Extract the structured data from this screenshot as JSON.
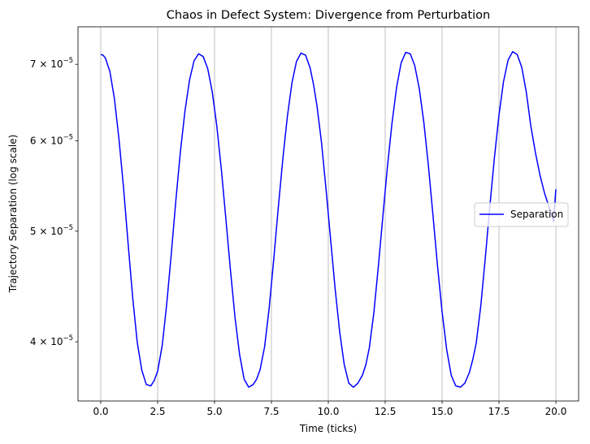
{
  "chart_data": {
    "type": "line",
    "title": "Chaos in Defect System: Divergence from Perturbation",
    "xlabel": "Time (ticks)",
    "ylabel": "Trajectory Separation (log scale)",
    "yscale": "log",
    "xlim": [
      -1.0,
      21.0
    ],
    "ylim": [
      3.55e-05,
      7.55e-05
    ],
    "x_ticks": [
      0.0,
      2.5,
      5.0,
      7.5,
      10.0,
      12.5,
      15.0,
      17.5,
      20.0
    ],
    "x_tick_labels": [
      "0.0",
      "2.5",
      "5.0",
      "7.5",
      "10.0",
      "12.5",
      "15.0",
      "17.5",
      "20.0"
    ],
    "y_ticks": [
      4e-05,
      5e-05,
      6e-05,
      7e-05
    ],
    "y_tick_labels": [
      {
        "base": "4 × 10",
        "exp": "−5"
      },
      {
        "base": "5 × 10",
        "exp": "−5"
      },
      {
        "base": "6 × 10",
        "exp": "−5"
      },
      {
        "base": "7 × 10",
        "exp": "−5"
      }
    ],
    "grid": "x-major",
    "legend_position": "center-right",
    "series": [
      {
        "name": "Separation",
        "color": "#0000ff",
        "x": [
          0.0,
          0.1,
          0.2,
          0.4,
          0.6,
          0.8,
          1.0,
          1.2,
          1.4,
          1.6,
          1.8,
          2.0,
          2.2,
          2.35,
          2.5,
          2.7,
          2.9,
          3.1,
          3.3,
          3.5,
          3.7,
          3.9,
          4.1,
          4.3,
          4.5,
          4.7,
          4.9,
          5.1,
          5.3,
          5.5,
          5.7,
          5.9,
          6.1,
          6.3,
          6.5,
          6.7,
          6.85,
          7.0,
          7.2,
          7.4,
          7.6,
          7.8,
          8.0,
          8.2,
          8.4,
          8.6,
          8.8,
          9.0,
          9.2,
          9.35,
          9.5,
          9.7,
          9.9,
          10.1,
          10.3,
          10.5,
          10.7,
          10.9,
          11.1,
          11.3,
          11.5,
          11.65,
          11.8,
          12.0,
          12.2,
          12.4,
          12.6,
          12.8,
          13.0,
          13.2,
          13.4,
          13.6,
          13.8,
          14.0,
          14.2,
          14.4,
          14.6,
          14.8,
          15.0,
          15.2,
          15.4,
          15.6,
          15.8,
          16.0,
          16.2,
          16.35,
          16.5,
          16.7,
          16.9,
          17.1,
          17.3,
          17.5,
          17.7,
          17.9,
          18.1,
          18.3,
          18.5,
          18.7,
          18.9,
          19.1,
          19.3,
          19.5,
          19.7,
          19.9,
          20.0
        ],
        "values": [
          7.14e-05,
          7.13e-05,
          7.09e-05,
          6.9e-05,
          6.53e-05,
          6.02e-05,
          5.46e-05,
          4.88e-05,
          4.38e-05,
          4e-05,
          3.78e-05,
          3.67e-05,
          3.66e-05,
          3.7e-05,
          3.77e-05,
          3.97e-05,
          4.32e-05,
          4.78e-05,
          5.32e-05,
          5.87e-05,
          6.37e-05,
          6.78e-05,
          7.05e-05,
          7.15e-05,
          7.11e-05,
          6.94e-05,
          6.62e-05,
          6.18e-05,
          5.66e-05,
          5.12e-05,
          4.62e-05,
          4.2e-05,
          3.9e-05,
          3.71e-05,
          3.65e-05,
          3.67e-05,
          3.71e-05,
          3.78e-05,
          3.96e-05,
          4.28e-05,
          4.72e-05,
          5.24e-05,
          5.78e-05,
          6.3e-05,
          6.74e-05,
          7.04e-05,
          7.16e-05,
          7.13e-05,
          6.95e-05,
          6.72e-05,
          6.44e-05,
          5.98e-05,
          5.44e-05,
          4.92e-05,
          4.45e-05,
          4.08e-05,
          3.82e-05,
          3.68e-05,
          3.65e-05,
          3.68e-05,
          3.74e-05,
          3.82e-05,
          3.95e-05,
          4.24e-05,
          4.66e-05,
          5.16e-05,
          5.7e-05,
          6.22e-05,
          6.68e-05,
          7.02e-05,
          7.17e-05,
          7.15e-05,
          6.98e-05,
          6.66e-05,
          6.22e-05,
          5.7e-05,
          5.16e-05,
          4.66e-05,
          4.25e-05,
          3.94e-05,
          3.74e-05,
          3.66e-05,
          3.65e-05,
          3.68e-05,
          3.76e-05,
          3.86e-05,
          3.99e-05,
          4.3e-05,
          4.74e-05,
          5.26e-05,
          5.8e-05,
          6.32e-05,
          6.76e-05,
          7.06e-05,
          7.18e-05,
          7.14e-05,
          6.96e-05,
          6.62e-05,
          6.18e-05,
          5.86e-05,
          5.6e-05,
          5.4e-05,
          5.25e-05,
          5.1e-05,
          5.44e-05
        ]
      }
    ]
  }
}
